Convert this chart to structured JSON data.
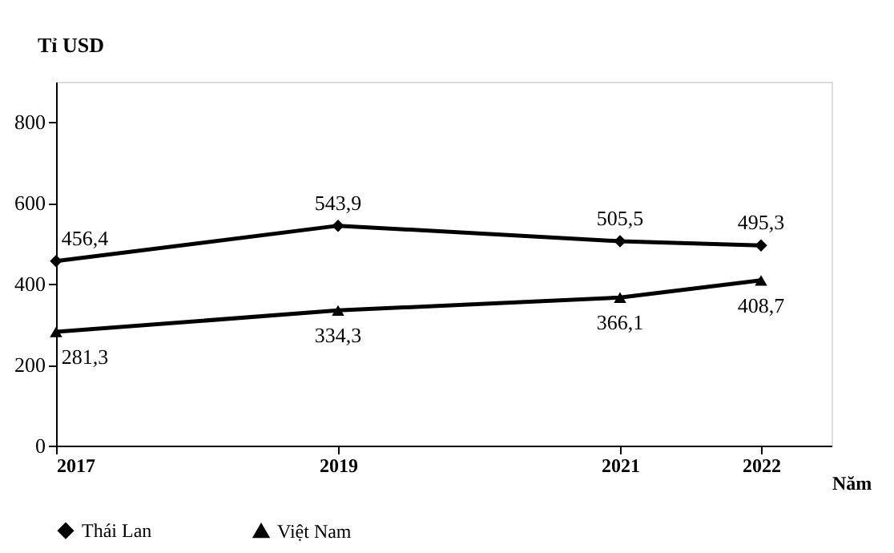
{
  "chart_data": {
    "type": "line",
    "ylabel": "Tỉ USD",
    "xlabel": "Năm",
    "x": [
      2017,
      2019,
      2021,
      2022
    ],
    "series": [
      {
        "name": "Thái Lan",
        "color": "#000000",
        "marker": "diamond",
        "values": [
          456.4,
          543.9,
          505.5,
          495.3
        ],
        "value_labels": [
          "456,4",
          "543,9",
          "505,5",
          "495,3"
        ]
      },
      {
        "name": "Việt Nam",
        "color": "#000000",
        "marker": "triangle",
        "values": [
          281.3,
          334.3,
          366.1,
          408.7
        ],
        "value_labels": [
          "281,3",
          "334,3",
          "366,1",
          "408,7"
        ]
      }
    ],
    "xlim": [
      2017,
      2022.5
    ],
    "xticks": [
      2017,
      2019,
      2021,
      2022
    ],
    "ylim": [
      0,
      900
    ],
    "yticks": [
      0,
      200,
      400,
      600,
      800
    ],
    "grid": false,
    "legend": "bottom",
    "line_style": "solid"
  }
}
